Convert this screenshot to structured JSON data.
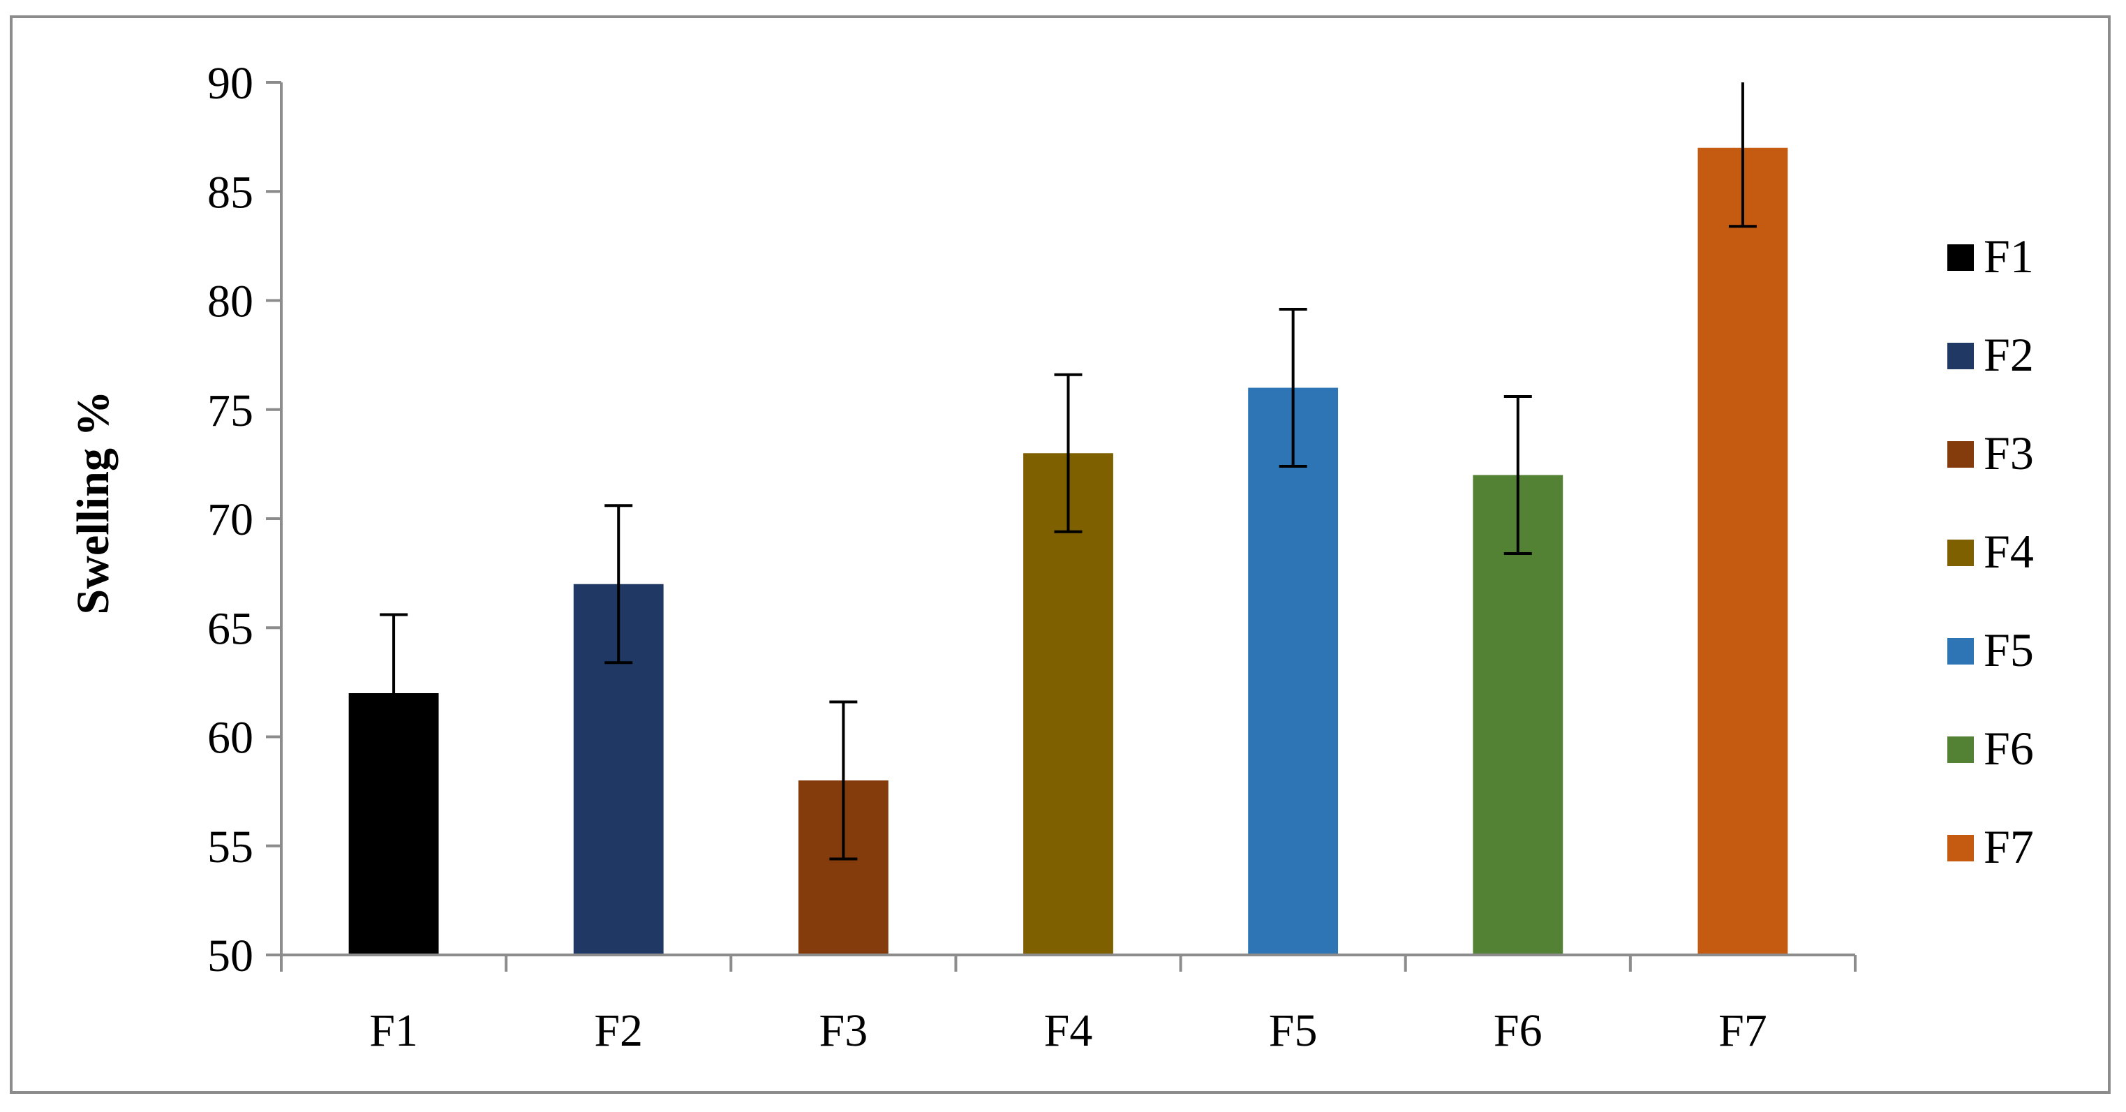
{
  "chart_data": {
    "type": "bar",
    "title": "",
    "xlabel": "",
    "ylabel": "Swelling %",
    "ylim": [
      50,
      90
    ],
    "yticks": [
      50,
      55,
      60,
      65,
      70,
      75,
      80,
      85,
      90
    ],
    "categories": [
      "F1",
      "F2",
      "F3",
      "F4",
      "F5",
      "F6",
      "F7"
    ],
    "values": [
      62,
      67,
      58,
      73,
      76,
      72,
      87
    ],
    "error": [
      3.6,
      3.6,
      3.6,
      3.6,
      3.6,
      3.6,
      3.6
    ],
    "colors": [
      "#000000",
      "#203864",
      "#843c0c",
      "#7f6000",
      "#2e75b6",
      "#548235",
      "#c55a11"
    ],
    "legend": {
      "position": "right",
      "entries": [
        "F1",
        "F2",
        "F3",
        "F4",
        "F5",
        "F6",
        "F7"
      ]
    },
    "grid": false
  }
}
